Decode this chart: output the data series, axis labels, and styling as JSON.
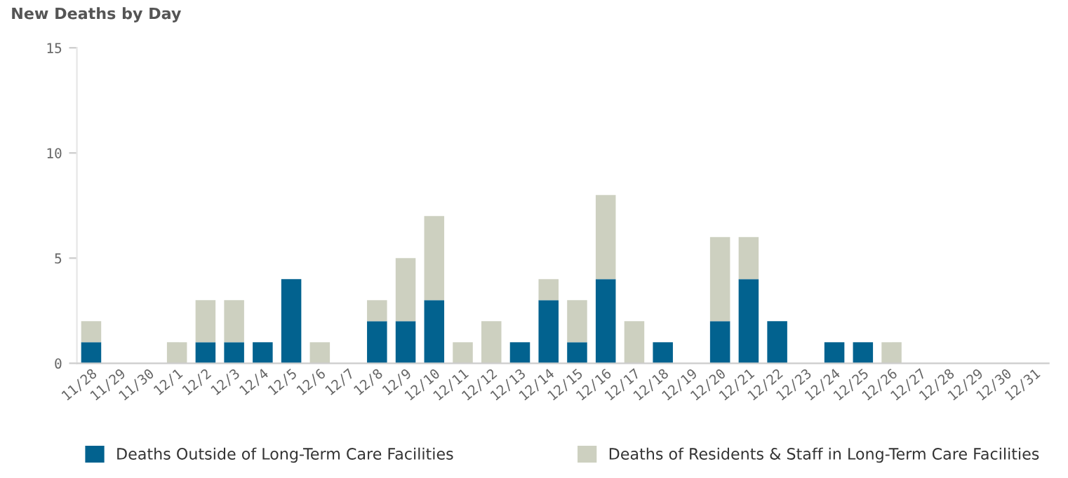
{
  "chart_data": {
    "type": "bar",
    "title": "New Deaths by Day",
    "stacked": true,
    "categories": [
      "11/28",
      "11/29",
      "11/30",
      "12/1",
      "12/2",
      "12/3",
      "12/4",
      "12/5",
      "12/6",
      "12/7",
      "12/8",
      "12/9",
      "12/10",
      "12/11",
      "12/12",
      "12/13",
      "12/14",
      "12/15",
      "12/16",
      "12/17",
      "12/18",
      "12/19",
      "12/20",
      "12/21",
      "12/22",
      "12/23",
      "12/24",
      "12/25",
      "12/26",
      "12/27",
      "12/28",
      "12/29",
      "12/30",
      "12/31"
    ],
    "series": [
      {
        "name": "Deaths Outside of Long-Term Care Facilities",
        "color": "#02628f",
        "values": [
          1,
          0,
          0,
          0,
          1,
          1,
          1,
          4,
          0,
          0,
          2,
          2,
          3,
          0,
          0,
          1,
          3,
          1,
          4,
          0,
          1,
          0,
          2,
          4,
          2,
          0,
          1,
          1,
          0,
          0,
          0,
          0,
          0,
          0
        ]
      },
      {
        "name": "Deaths of Residents & Staff in Long-Term Care Facilities",
        "color": "#cdd0c0",
        "values": [
          1,
          0,
          0,
          1,
          2,
          2,
          0,
          0,
          1,
          0,
          1,
          3,
          4,
          1,
          2,
          0,
          1,
          2,
          4,
          2,
          0,
          0,
          4,
          2,
          0,
          0,
          0,
          0,
          1,
          0,
          0,
          0,
          0,
          0
        ]
      }
    ],
    "ylim": [
      0,
      15
    ],
    "yticks": [
      0,
      5,
      10,
      15
    ],
    "grid": false,
    "legend": "bottom"
  }
}
